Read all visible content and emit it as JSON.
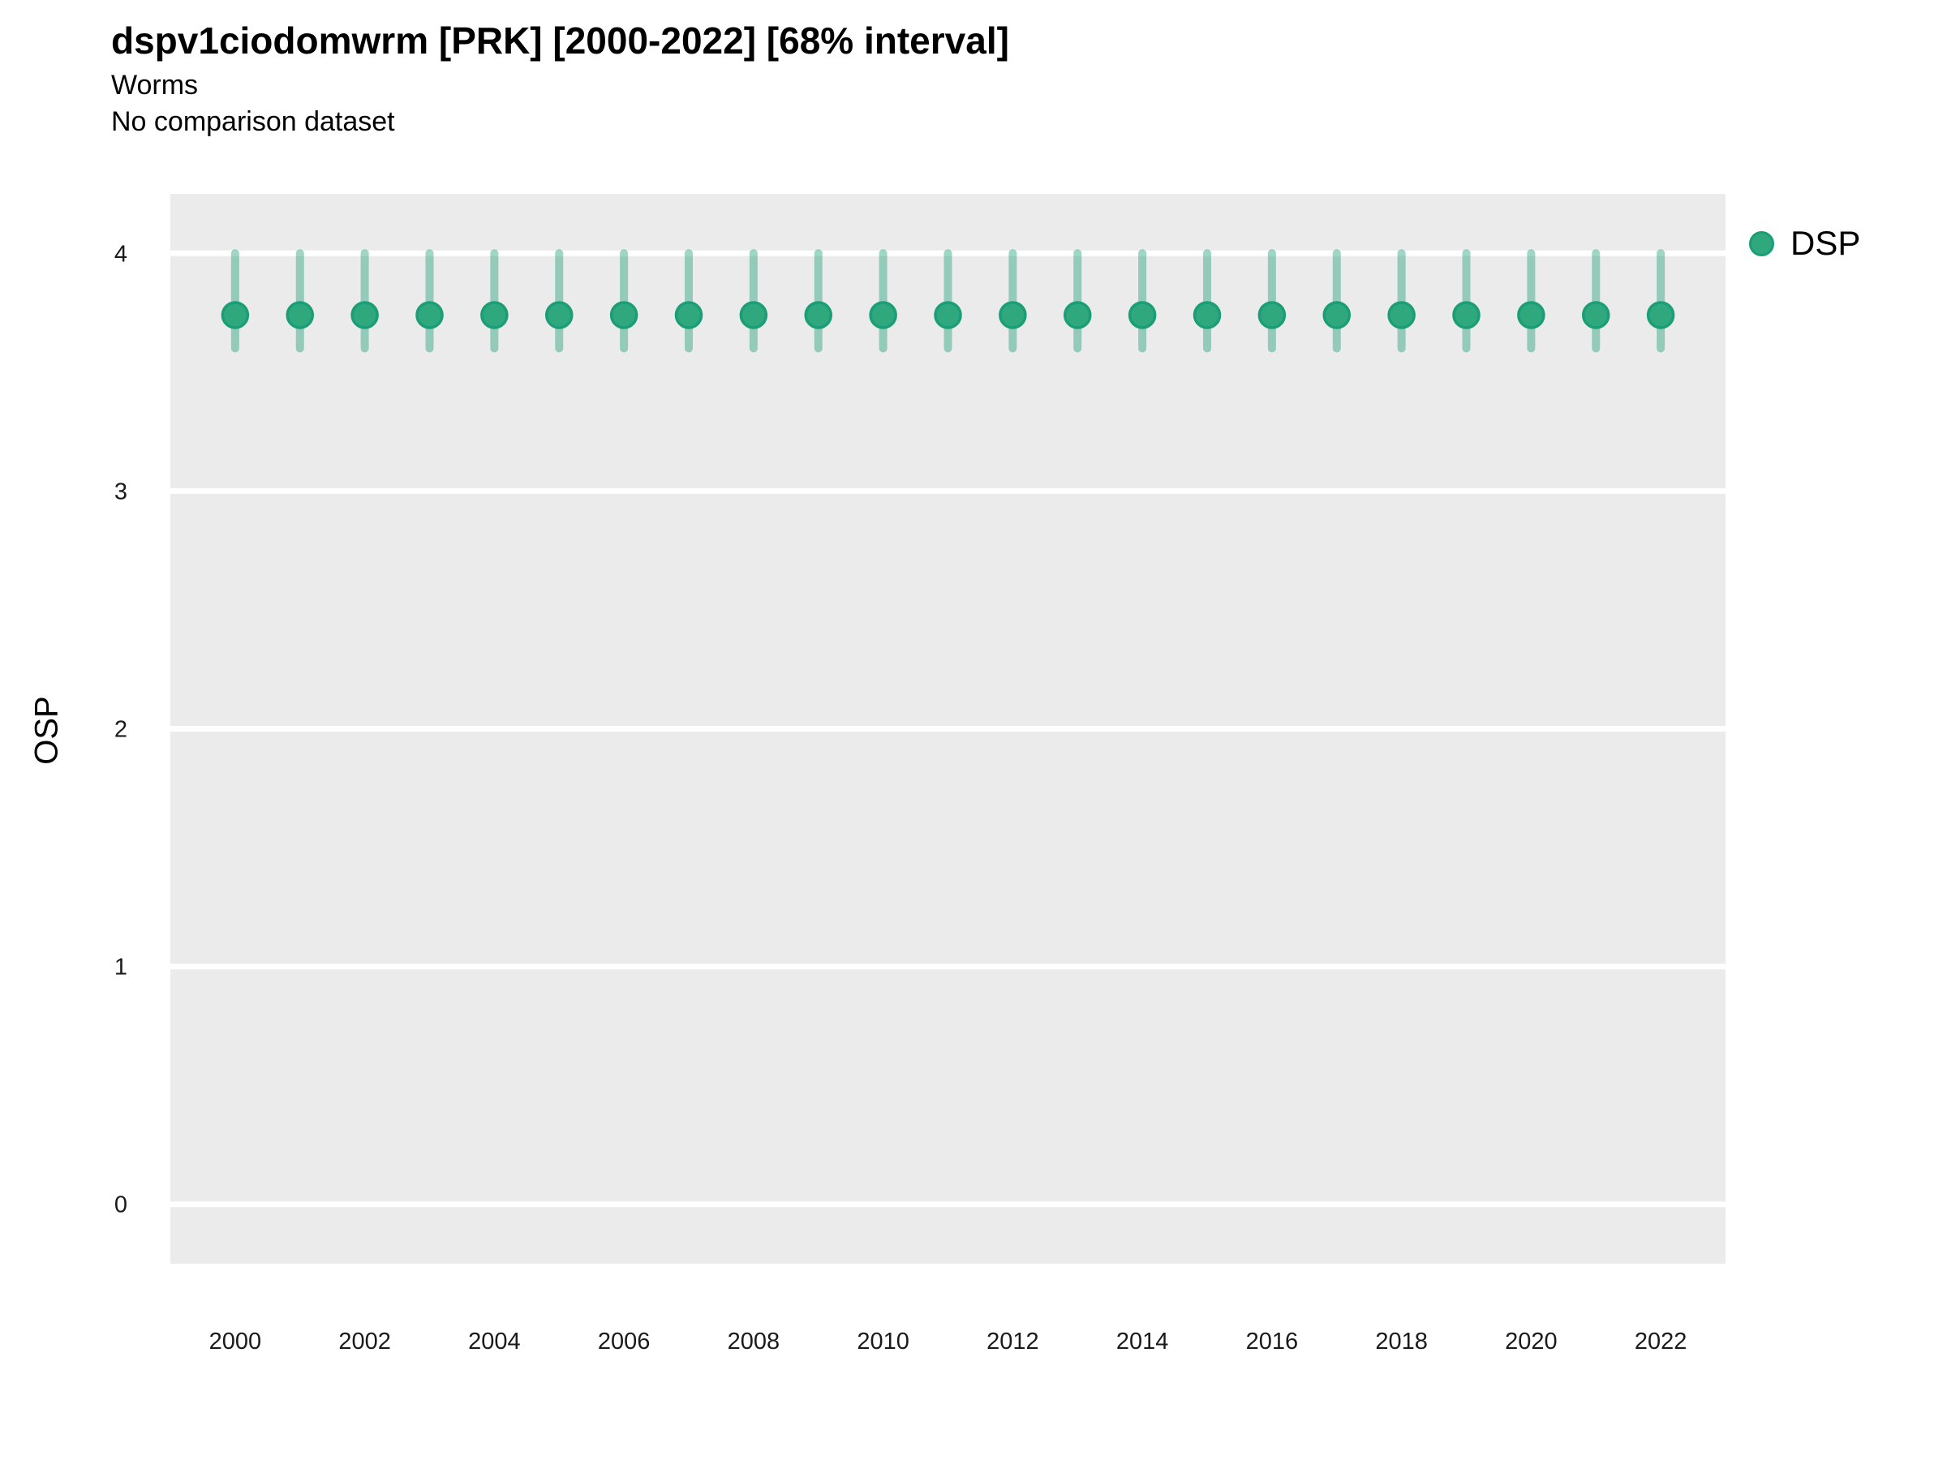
{
  "header": {
    "title": "dspv1ciodomwrm [PRK] [2000-2022] [68% interval]",
    "subtitle": "Worms",
    "comparison_note": "No comparison dataset"
  },
  "legend": {
    "items": [
      {
        "label": "DSP",
        "marker": "circle-icon"
      }
    ]
  },
  "colors": {
    "panel_background": "#EBEBEB",
    "gridline": "#FFFFFF",
    "point_fill": "#2EA87C",
    "point_stroke": "#1B9E77",
    "errorbar": "#1B9E77",
    "errorbar_opacity": 0.42,
    "tick_label": "#1A1A1A"
  },
  "chart_data": {
    "type": "scatter",
    "title": "dspv1ciodomwrm [PRK] [2000-2022] [68% interval]",
    "subtitle": "Worms",
    "note": "No comparison dataset",
    "xlabel": "",
    "ylabel": "OSP",
    "xlim": [
      1999,
      2023
    ],
    "ylim": [
      -0.25,
      4.25
    ],
    "yticks": [
      0,
      1,
      2,
      3,
      4
    ],
    "xticks": [
      2000,
      2002,
      2004,
      2006,
      2008,
      2010,
      2012,
      2014,
      2016,
      2018,
      2020,
      2022
    ],
    "grid": "horizontal-major-only",
    "legend_position": "right-top",
    "series": [
      {
        "name": "DSP",
        "style": "pointrange",
        "x": [
          2000,
          2001,
          2002,
          2003,
          2004,
          2005,
          2006,
          2007,
          2008,
          2009,
          2010,
          2011,
          2012,
          2013,
          2014,
          2015,
          2016,
          2017,
          2018,
          2019,
          2020,
          2021,
          2022
        ],
        "y": [
          3.74,
          3.74,
          3.74,
          3.74,
          3.74,
          3.74,
          3.74,
          3.74,
          3.74,
          3.74,
          3.74,
          3.74,
          3.74,
          3.74,
          3.74,
          3.74,
          3.74,
          3.74,
          3.74,
          3.74,
          3.74,
          3.74,
          3.74
        ],
        "lo": [
          3.6,
          3.6,
          3.6,
          3.6,
          3.6,
          3.6,
          3.6,
          3.6,
          3.6,
          3.6,
          3.6,
          3.6,
          3.6,
          3.6,
          3.6,
          3.6,
          3.6,
          3.6,
          3.6,
          3.6,
          3.6,
          3.6,
          3.6
        ],
        "hi": [
          4.0,
          4.0,
          4.0,
          4.0,
          4.0,
          4.0,
          4.0,
          4.0,
          4.0,
          4.0,
          4.0,
          4.0,
          4.0,
          4.0,
          4.0,
          4.0,
          4.0,
          4.0,
          4.0,
          4.0,
          4.0,
          4.0,
          4.0
        ],
        "interval_label": "68% interval"
      }
    ]
  }
}
